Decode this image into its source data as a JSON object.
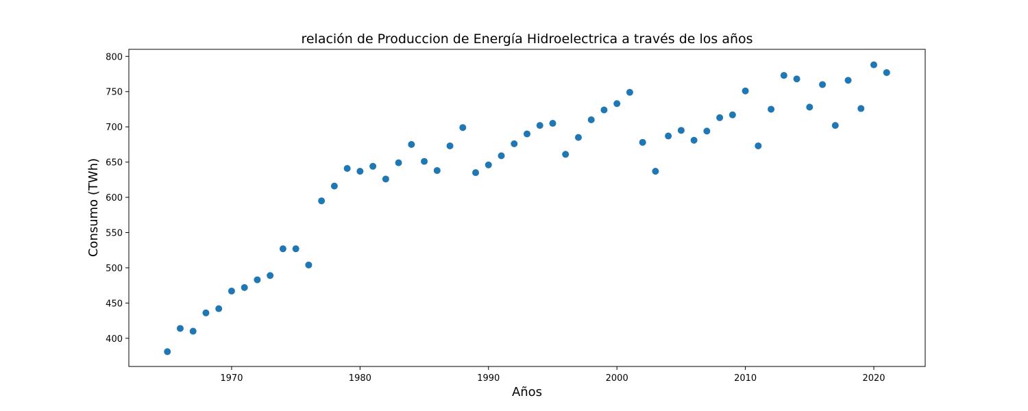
{
  "chart_data": {
    "type": "scatter",
    "title": "relación de Produccion de Energía Hidroelectrica a través de los años",
    "xlabel": "Años",
    "ylabel": "Consumo (TWh)",
    "xlim": [
      1962,
      2024
    ],
    "ylim": [
      360,
      810
    ],
    "x_ticks": [
      1970,
      1980,
      1990,
      2000,
      2010,
      2020
    ],
    "y_ticks": [
      400,
      450,
      500,
      550,
      600,
      650,
      700,
      750,
      800
    ],
    "grid": false,
    "marker_color": "#1f77b4",
    "series": [
      {
        "x": [
          1965,
          1966,
          1967,
          1968,
          1969,
          1970,
          1971,
          1972,
          1973,
          1974,
          1975,
          1976,
          1977,
          1978,
          1979,
          1980,
          1981,
          1982,
          1983,
          1984,
          1985,
          1986,
          1987,
          1988,
          1989,
          1990,
          1991,
          1992,
          1993,
          1994,
          1995,
          1996,
          1997,
          1998,
          1999,
          2000,
          2001,
          2002,
          2003,
          2004,
          2005,
          2006,
          2007,
          2008,
          2009,
          2010,
          2011,
          2012,
          2013,
          2014,
          2015,
          2016,
          2017,
          2018,
          2019,
          2020,
          2021
        ],
        "y": [
          381,
          414,
          410,
          436,
          442,
          467,
          472,
          483,
          489,
          527,
          527,
          504,
          595,
          616,
          641,
          637,
          644,
          626,
          649,
          675,
          651,
          638,
          673,
          699,
          635,
          646,
          659,
          676,
          690,
          702,
          705,
          661,
          685,
          710,
          724,
          733,
          749,
          678,
          637,
          687,
          695,
          681,
          694,
          713,
          717,
          751,
          673,
          725,
          773,
          768,
          728,
          760,
          702,
          766,
          726,
          788,
          777
        ]
      }
    ]
  }
}
